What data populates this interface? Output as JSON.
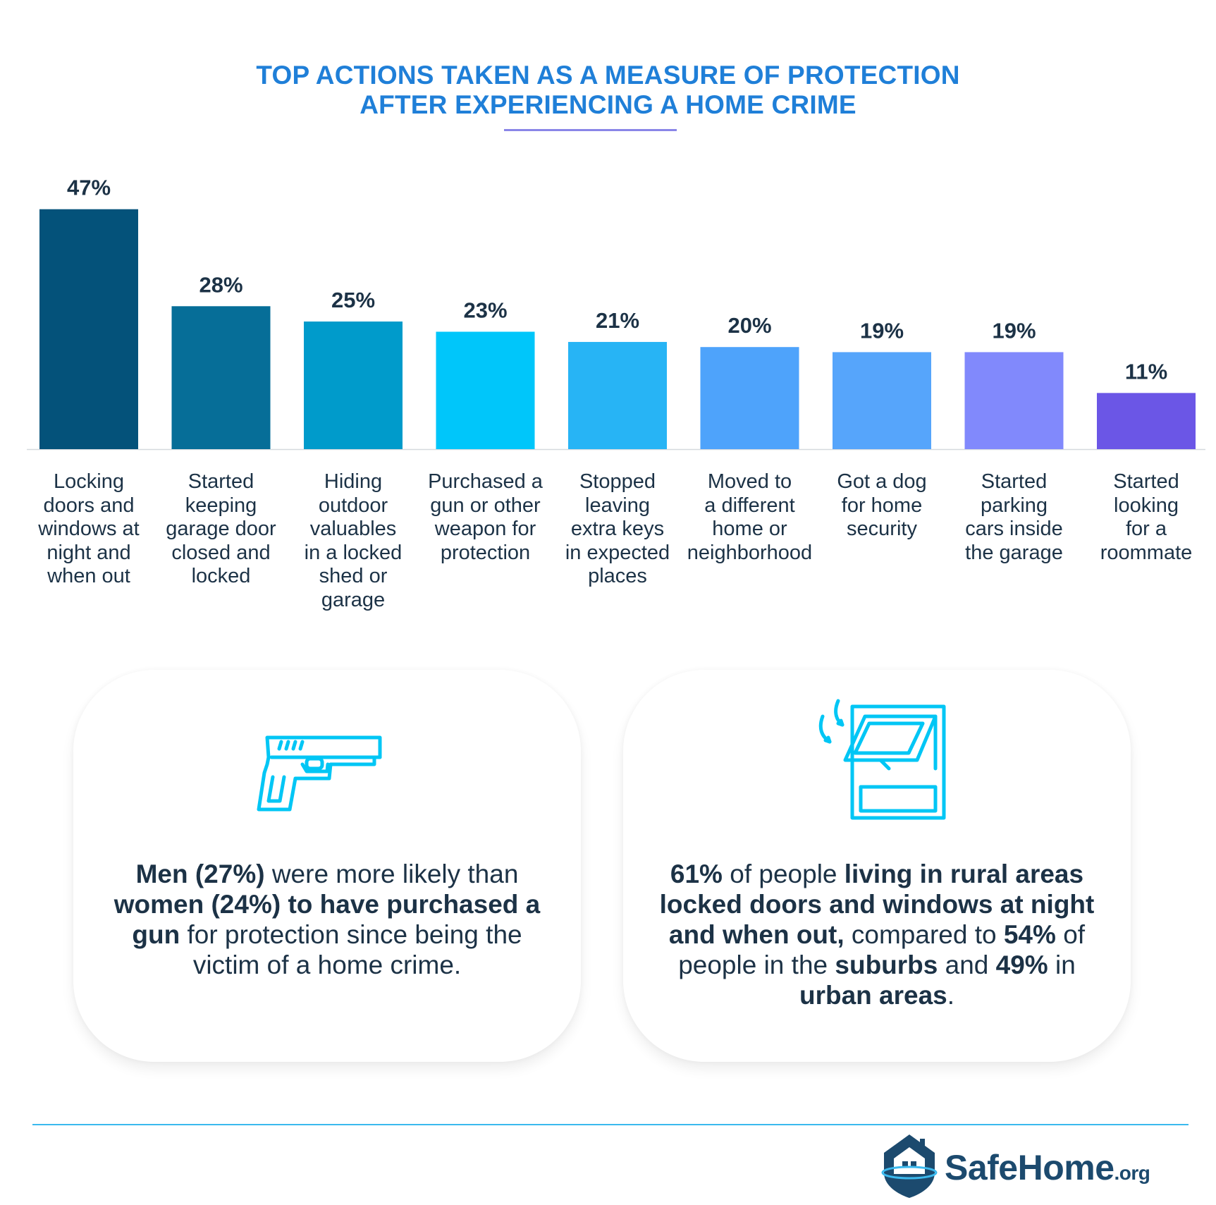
{
  "title": {
    "line1": "TOP ACTIONS TAKEN AS A MEASURE OF PROTECTION",
    "line2": "AFTER EXPERIENCING A HOME CRIME"
  },
  "chart_data": {
    "type": "bar",
    "title": "TOP ACTIONS TAKEN AS A MEASURE OF PROTECTION AFTER EXPERIENCING A HOME CRIME",
    "xlabel": "",
    "ylabel": "",
    "ylim": [
      0,
      50
    ],
    "grid": false,
    "categories": [
      "Locking doors and windows at night and when out",
      "Started keeping garage door closed and locked",
      "Hiding outdoor valuables in a locked shed or garage",
      "Purchased a gun or other weapon for protection",
      "Stopped leaving extra keys in expected places",
      "Moved to a different home or neighborhood",
      "Got a dog for home security",
      "Started parking cars inside the garage",
      "Started looking for a roommate"
    ],
    "category_lines": [
      [
        "Locking",
        "doors and",
        "windows at",
        "night and",
        "when out"
      ],
      [
        "Started",
        "keeping",
        "garage door",
        "closed and",
        "locked"
      ],
      [
        "Hiding",
        "outdoor",
        "valuables",
        "in a locked",
        "shed or",
        "garage"
      ],
      [
        "Purchased a",
        "gun or other",
        "weapon for",
        "protection"
      ],
      [
        "Stopped",
        "leaving",
        "extra keys",
        "in expected",
        "places"
      ],
      [
        "Moved to",
        "a different",
        "home or",
        "neighborhood"
      ],
      [
        "Got a dog",
        "for home",
        "security"
      ],
      [
        "Started",
        "parking",
        "cars inside",
        "the garage"
      ],
      [
        "Started",
        "looking",
        "for a",
        "roommate"
      ]
    ],
    "values": [
      47,
      28,
      25,
      23,
      21,
      20,
      19,
      19,
      11
    ],
    "value_labels": [
      "47%",
      "28%",
      "25%",
      "23%",
      "21%",
      "20%",
      "19%",
      "19%",
      "11%"
    ],
    "colors": [
      "#04527a",
      "#066e98",
      "#009bcb",
      "#00c6fa",
      "#27b4f5",
      "#4ea3fb",
      "#56a5fb",
      "#8189fc",
      "#6b56e6"
    ]
  },
  "cards": {
    "left": {
      "icon": "gun-icon",
      "segments": [
        {
          "t": "Men (27%)",
          "b": true
        },
        {
          "t": " were more likely than ",
          "b": false
        },
        {
          "t": "women (24%) to have purchased a gun",
          "b": true
        },
        {
          "t": " for protection since being the victim of a home crime.",
          "b": false
        }
      ]
    },
    "right": {
      "icon": "window-icon",
      "segments": [
        {
          "t": "61%",
          "b": true
        },
        {
          "t": " of people ",
          "b": false
        },
        {
          "t": "living in rural areas locked doors and windows at night and when out,",
          "b": true
        },
        {
          "t": " compared to ",
          "b": false
        },
        {
          "t": "54%",
          "b": true
        },
        {
          "t": " of people in the ",
          "b": false
        },
        {
          "t": "suburbs",
          "b": true
        },
        {
          "t": " and ",
          "b": false
        },
        {
          "t": "49%",
          "b": true
        },
        {
          "t": " in ",
          "b": false
        },
        {
          "t": "urban areas",
          "b": true
        },
        {
          "t": ".",
          "b": false
        }
      ]
    }
  },
  "logo": {
    "name": "SafeHome",
    "suffix": ".org",
    "icon": "house-shield-icon"
  }
}
